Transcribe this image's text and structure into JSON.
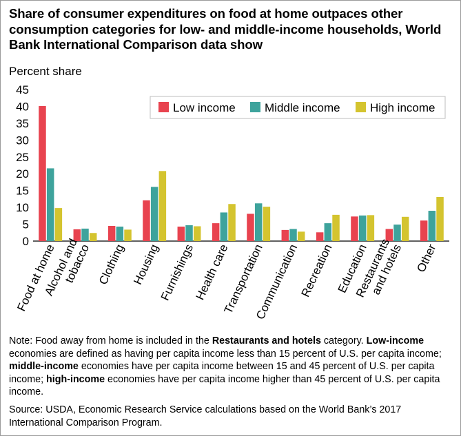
{
  "title": "Share of consumer expenditures on food at home outpaces other consumption categories for low- and middle-income households, World Bank International Comparison data show",
  "chart_data": {
    "type": "bar",
    "ylabel": "Percent share",
    "ylim": [
      0,
      45
    ],
    "yticks": [
      0,
      5,
      10,
      15,
      20,
      25,
      30,
      35,
      40,
      45
    ],
    "grid": false,
    "legend_position": "top-right",
    "categories": [
      "Food at home",
      "Alcohol and tobacco",
      "Clothing",
      "Housing",
      "Furnishings",
      "Health care",
      "Transportation",
      "Communication",
      "Recreation",
      "Education",
      "Restaurants and hotels",
      "Other"
    ],
    "category_label_lines": [
      [
        "Food at home"
      ],
      [
        "Alcohol and",
        "tobacco"
      ],
      [
        "Clothing"
      ],
      [
        "Housing"
      ],
      [
        "Furnishings"
      ],
      [
        "Health care"
      ],
      [
        "Transportation"
      ],
      [
        "Communication"
      ],
      [
        "Recreation"
      ],
      [
        "Education"
      ],
      [
        "Restaurants",
        "and hotels"
      ],
      [
        "Other"
      ]
    ],
    "series": [
      {
        "name": "Low income",
        "color": "#e8434f",
        "values": [
          40.1,
          3.5,
          4.5,
          12.1,
          4.3,
          5.3,
          8.1,
          3.3,
          2.6,
          7.3,
          3.6,
          6.1
        ]
      },
      {
        "name": "Middle income",
        "color": "#3ea39c",
        "values": [
          21.6,
          3.7,
          4.3,
          16.1,
          4.7,
          8.5,
          11.2,
          3.6,
          5.3,
          7.6,
          4.9,
          9.0
        ]
      },
      {
        "name": "High income",
        "color": "#d4c42f",
        "values": [
          9.8,
          2.4,
          3.4,
          20.8,
          4.4,
          11.0,
          10.2,
          2.8,
          7.8,
          7.7,
          7.2,
          13.1
        ]
      }
    ]
  },
  "note": {
    "part1": "Note: Food away from home is included in the ",
    "bold1": "Restaurants and hotels",
    "part2": " category. ",
    "bold2": "Low-income",
    "part3": " economies are defined as having per capita income less than 15 percent of U.S. per capita income; ",
    "bold3": "middle-income",
    "part4": " economies have per capita income between 15 and 45 percent of U.S. per capita income; ",
    "bold4": "high-income",
    "part5": " economies have per capita income higher than 45 percent of U.S. per capita income."
  },
  "source": "Source: USDA, Economic Research Service calculations based on the World Bank’s 2017 International Comparison Program."
}
